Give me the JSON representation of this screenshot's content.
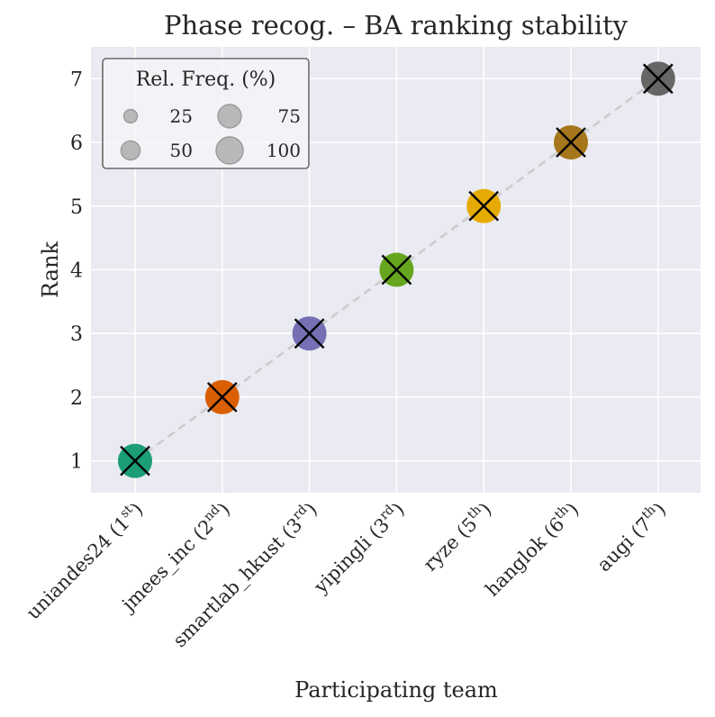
{
  "chart_data": {
    "type": "scatter",
    "title": "Phase recog. – BA ranking stability",
    "xlabel": "Participating team",
    "ylabel": "Rank",
    "ylim": [
      0.5,
      7.5
    ],
    "yticks": [
      1,
      2,
      3,
      4,
      5,
      6,
      7
    ],
    "grid": true,
    "teams": [
      {
        "label": "uniandes24 (1st)",
        "name": "uniandes24",
        "place": "1",
        "suffix": "st",
        "rank": 1,
        "freq": 100,
        "color": "#1b9e77"
      },
      {
        "label": "jmees_inc (2nd)",
        "name": "jmees_inc",
        "place": "2",
        "suffix": "nd",
        "rank": 2,
        "freq": 100,
        "color": "#d95f02"
      },
      {
        "label": "smartlab_hkust (3rd)",
        "name": "smartlab_hkust",
        "place": "3",
        "suffix": "rd",
        "rank": 3,
        "freq": 100,
        "color": "#7570b3"
      },
      {
        "label": "yipingli (3rd)",
        "name": "yipingli",
        "place": "3",
        "suffix": "rd",
        "rank": 4,
        "freq": 100,
        "color": "#66a61e"
      },
      {
        "label": "ryze (5th)",
        "name": "ryze",
        "place": "5",
        "suffix": "th",
        "rank": 5,
        "freq": 100,
        "color": "#e6ab02"
      },
      {
        "label": "hanglok (6th)",
        "name": "hanglok",
        "place": "6",
        "suffix": "th",
        "rank": 6,
        "freq": 100,
        "color": "#a6761d"
      },
      {
        "label": "augi (7th)",
        "name": "augi",
        "place": "7",
        "suffix": "th",
        "rank": 7,
        "freq": 100,
        "color": "#666666"
      }
    ],
    "legend": {
      "title": "Rel. Freq. (%)",
      "placement": "top-left",
      "entries": [
        {
          "label": "25",
          "value": 25
        },
        {
          "label": "50",
          "value": 50
        },
        {
          "label": "75",
          "value": 75
        },
        {
          "label": "100",
          "value": 100
        }
      ]
    },
    "colors": {
      "background": "#eaeaf2",
      "grid": "#ffffff",
      "diagonal": "#cccccc",
      "legend_marker": "#b8b8b8",
      "marker_x": "#000000",
      "text": "#262626"
    }
  }
}
